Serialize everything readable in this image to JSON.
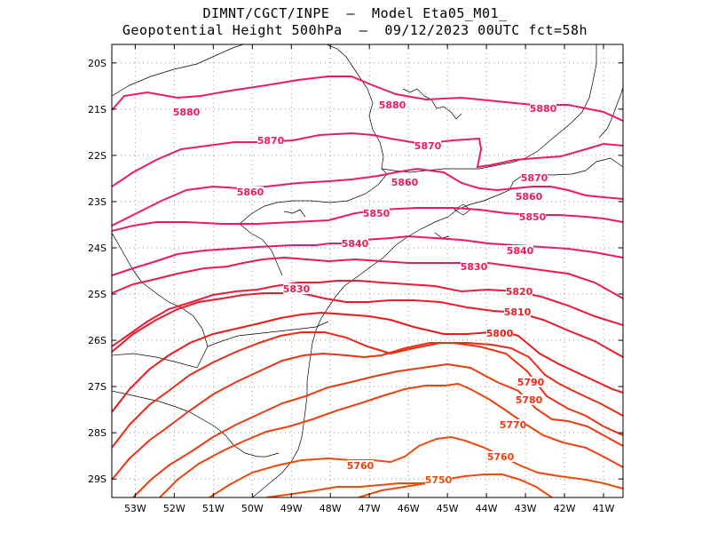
{
  "title_line1": "DIMNT/CGCT/INPE  –  Model Eta05_M01_",
  "title_line2": "Geopotential Height 500hPa  –  09/12/2023 00UTC fct=58h",
  "map": {
    "lon_range": [
      -53.6,
      -40.5
    ],
    "lat_range": [
      -29.4,
      -19.6
    ],
    "grid": "dotted",
    "x_ticks": [
      "53W",
      "52W",
      "51W",
      "50W",
      "49W",
      "48W",
      "47W",
      "46W",
      "45W",
      "44W",
      "43W",
      "42W",
      "41W"
    ],
    "y_ticks": [
      "20S",
      "21S",
      "22S",
      "23S",
      "24S",
      "25S",
      "26S",
      "27S",
      "28S",
      "29S"
    ]
  },
  "contours": [
    {
      "value": 5880,
      "label": "5880",
      "color": "#ee1a66"
    },
    {
      "value": 5870,
      "label": "5870",
      "color": "#ee1a66"
    },
    {
      "value": 5860,
      "label": "5860",
      "color": "#ee1a66"
    },
    {
      "value": 5850,
      "label": "5850",
      "color": "#ee1a66"
    },
    {
      "value": 5840,
      "label": "5840",
      "color": "#ee1a5a"
    },
    {
      "value": 5830,
      "label": "5830",
      "color": "#ee1a4a"
    },
    {
      "value": 5820,
      "label": "5820",
      "color": "#ee1a3a"
    },
    {
      "value": 5810,
      "label": "5810",
      "color": "#ee1a2a"
    },
    {
      "value": 5800,
      "label": "5800",
      "color": "#ee1a1a"
    },
    {
      "value": 5790,
      "label": "5790",
      "color": "#ee2a14"
    },
    {
      "value": 5780,
      "label": "5780",
      "color": "#ee3212"
    },
    {
      "value": 5770,
      "label": "5770",
      "color": "#ee3a10"
    },
    {
      "value": 5760,
      "label": "5760",
      "color": "#ee420e"
    },
    {
      "value": 5750,
      "label": "5750",
      "color": "#ee4a0c"
    }
  ]
}
